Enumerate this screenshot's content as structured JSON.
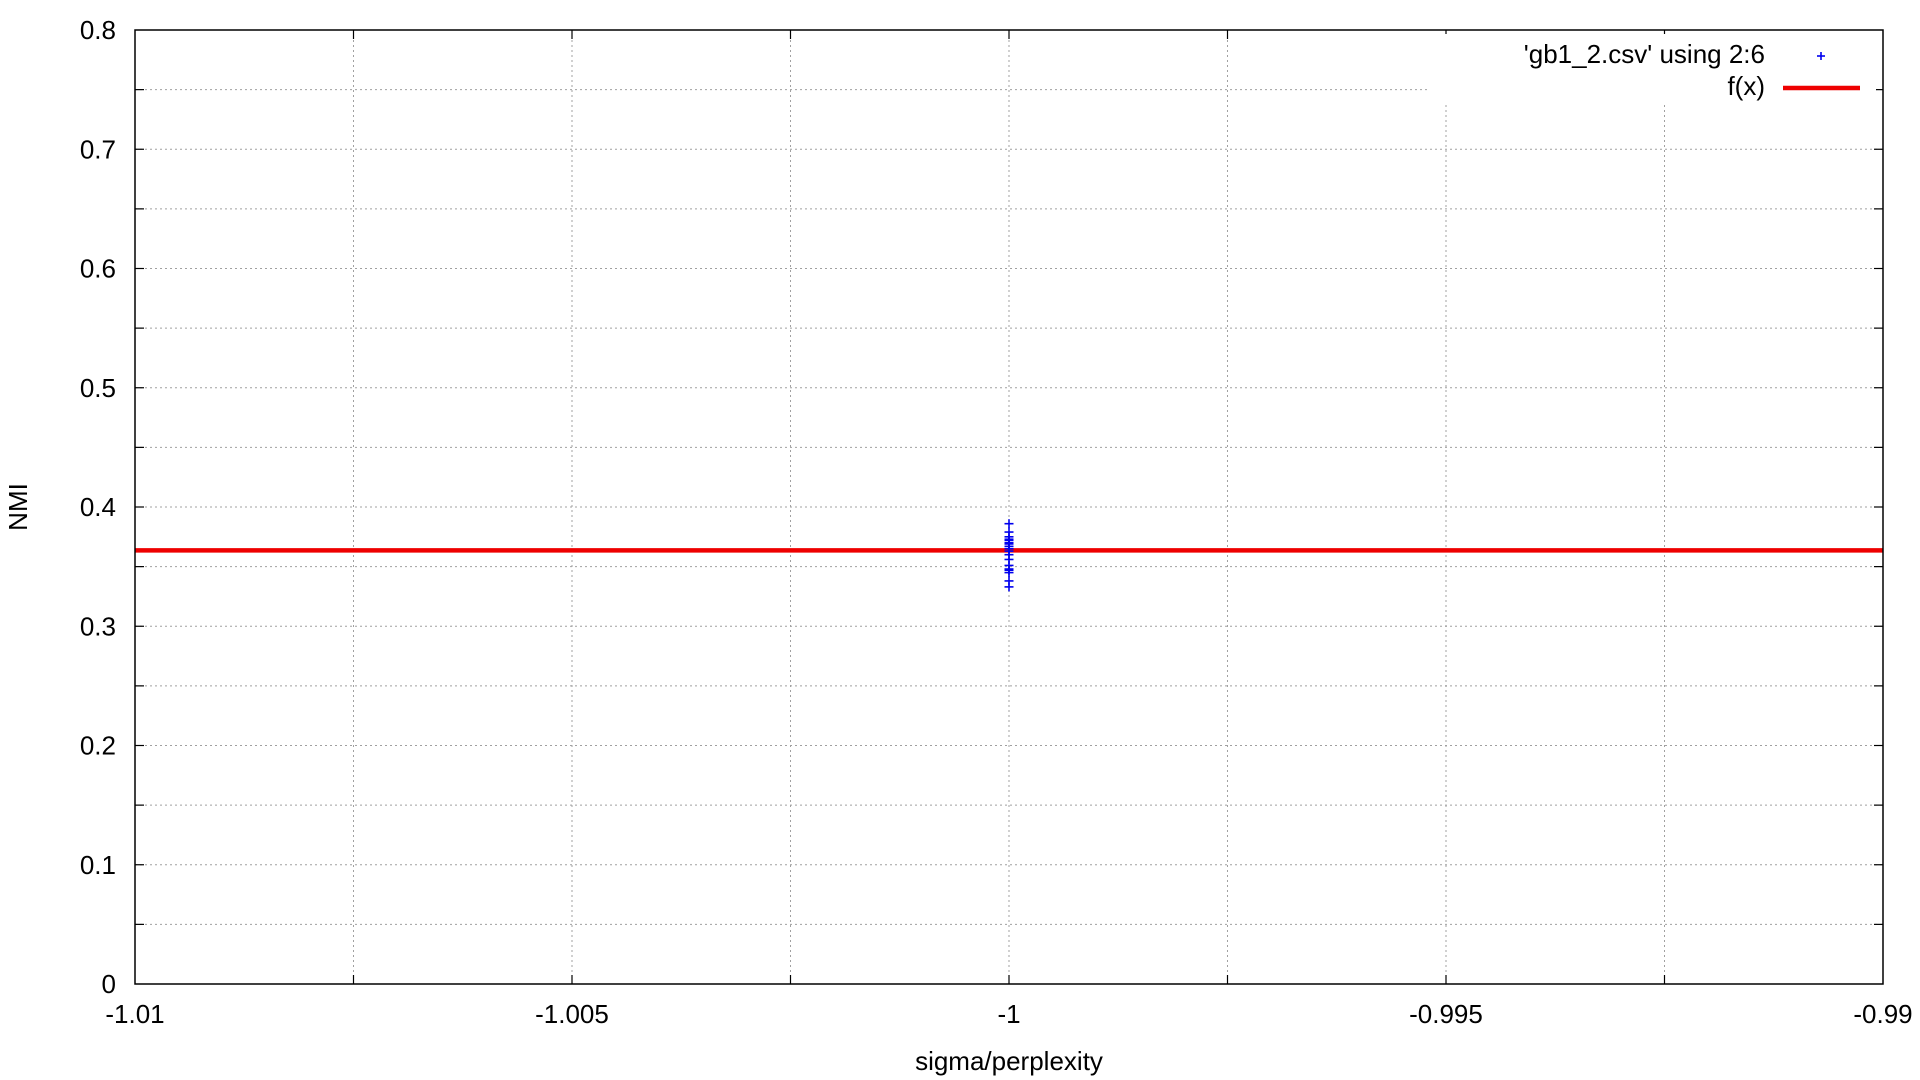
{
  "chart_data": {
    "type": "scatter",
    "title": "",
    "xlabel": "sigma/perplexity",
    "ylabel": "NMI",
    "xlim": [
      -1.01,
      -0.99
    ],
    "ylim": [
      0,
      0.8
    ],
    "x_ticks": [
      -1.01,
      -1.005,
      -1,
      -0.995,
      -0.99
    ],
    "x_tick_labels": [
      "-1.01",
      "-1.005",
      "-1",
      "-0.995",
      "-0.99"
    ],
    "y_ticks": [
      0,
      0.1,
      0.2,
      0.3,
      0.4,
      0.5,
      0.6,
      0.7,
      0.8
    ],
    "y_tick_labels": [
      "0",
      "0.1",
      "0.2",
      "0.3",
      "0.4",
      "0.5",
      "0.6",
      "0.7",
      "0.8"
    ],
    "grid": true,
    "legend_position": "top-right",
    "series": [
      {
        "name": "'gb1_2.csv' using 2:6",
        "kind": "points",
        "marker": "plus",
        "color": "#0000ee",
        "points": [
          {
            "x": -1,
            "y": 0.386
          },
          {
            "x": -1,
            "y": 0.379
          },
          {
            "x": -1,
            "y": 0.375
          },
          {
            "x": -1,
            "y": 0.373
          },
          {
            "x": -1,
            "y": 0.372
          },
          {
            "x": -1,
            "y": 0.37
          },
          {
            "x": -1,
            "y": 0.369
          },
          {
            "x": -1,
            "y": 0.367
          },
          {
            "x": -1,
            "y": 0.365
          },
          {
            "x": -1,
            "y": 0.363
          },
          {
            "x": -1,
            "y": 0.36
          },
          {
            "x": -1,
            "y": 0.356
          },
          {
            "x": -1,
            "y": 0.351
          },
          {
            "x": -1,
            "y": 0.348
          },
          {
            "x": -1,
            "y": 0.347
          },
          {
            "x": -1,
            "y": 0.345
          },
          {
            "x": -1,
            "y": 0.338
          },
          {
            "x": -1,
            "y": 0.333
          }
        ]
      },
      {
        "name": "f(x)",
        "kind": "line",
        "color": "#ee0000",
        "y_constant": 0.3636
      }
    ]
  }
}
